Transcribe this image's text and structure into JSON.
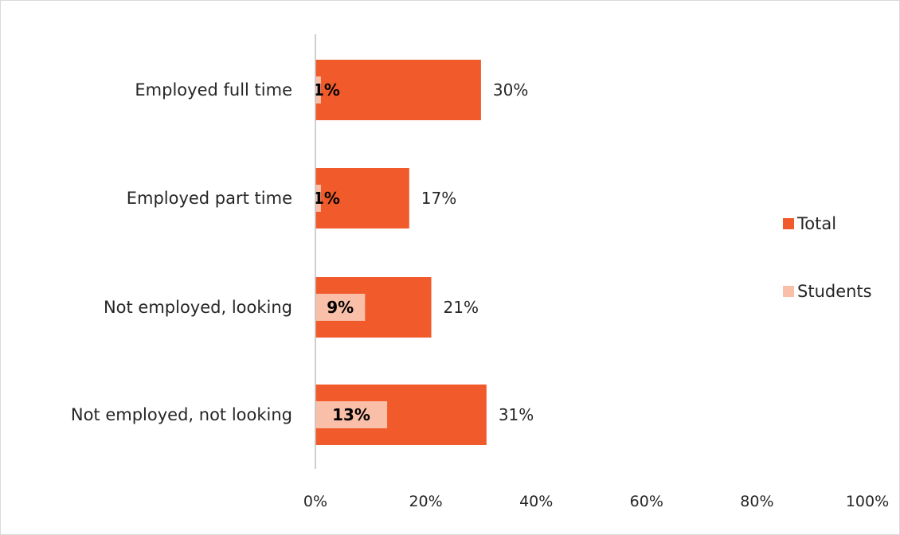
{
  "chart_data": {
    "type": "bar",
    "orientation": "horizontal",
    "categories": [
      "Employed full time",
      "Employed part time",
      "Not employed, looking",
      "Not employed, not looking"
    ],
    "series": [
      {
        "name": "Total",
        "values": [
          30,
          17,
          21,
          31
        ],
        "labels": [
          "30%",
          "17%",
          "21%",
          "31%"
        ],
        "color": "#f15a2b"
      },
      {
        "name": "Students",
        "values": [
          1,
          1,
          9,
          13
        ],
        "labels": [
          "1%",
          "1%",
          "9%",
          "13%"
        ],
        "color": "#f9bfa9"
      }
    ],
    "xlim": [
      0,
      100
    ],
    "x_ticks": [
      "0%",
      "20%",
      "40%",
      "60%",
      "80%",
      "100%"
    ],
    "legend": "right",
    "grid": false,
    "title": "",
    "xlabel": "",
    "ylabel": ""
  }
}
